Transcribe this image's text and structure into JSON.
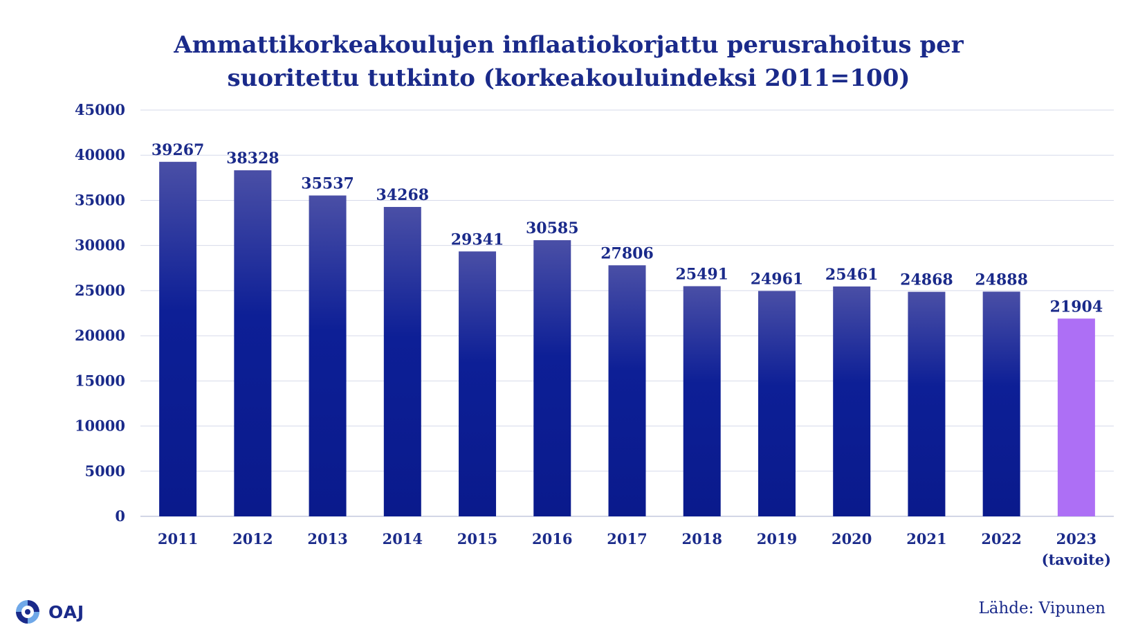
{
  "chart_data": {
    "type": "bar",
    "title_lines": [
      "Ammattikorkeakoulujen inflaatiokorjattu perusrahoitus per",
      "suoritettu tutkinto (korkeakouluindeksi 2011=100)"
    ],
    "categories": [
      [
        "2011"
      ],
      [
        "2012"
      ],
      [
        "2013"
      ],
      [
        "2014"
      ],
      [
        "2015"
      ],
      [
        "2016"
      ],
      [
        "2017"
      ],
      [
        "2018"
      ],
      [
        "2019"
      ],
      [
        "2020"
      ],
      [
        "2021"
      ],
      [
        "2022"
      ],
      [
        "2023",
        "(tavoite)"
      ]
    ],
    "values": [
      39267,
      38328,
      35537,
      34268,
      29341,
      30585,
      27806,
      25491,
      24961,
      25461,
      24868,
      24888,
      21904
    ],
    "data_labels": [
      "39267",
      "38328",
      "35537",
      "34268",
      "29341",
      "30585",
      "27806",
      "25491",
      "24961",
      "25461",
      "24868",
      "24888",
      "21904"
    ],
    "yticks": [
      0,
      5000,
      10000,
      15000,
      20000,
      25000,
      30000,
      35000,
      40000,
      45000
    ],
    "ylim": [
      0,
      45000
    ],
    "grid": true,
    "legend": "none",
    "colors": {
      "bar_top": "#4a4fa6",
      "bar_bottom": "#0a1a8c",
      "highlight": "#ad6ff5",
      "text": "#1a2a8a",
      "grid": "#d6d9ea"
    },
    "highlight_index": 12
  },
  "footer": {
    "logo_text": "OAJ",
    "logo_icon": "oaj-logo-icon",
    "source": "Lähde: Vipunen"
  }
}
